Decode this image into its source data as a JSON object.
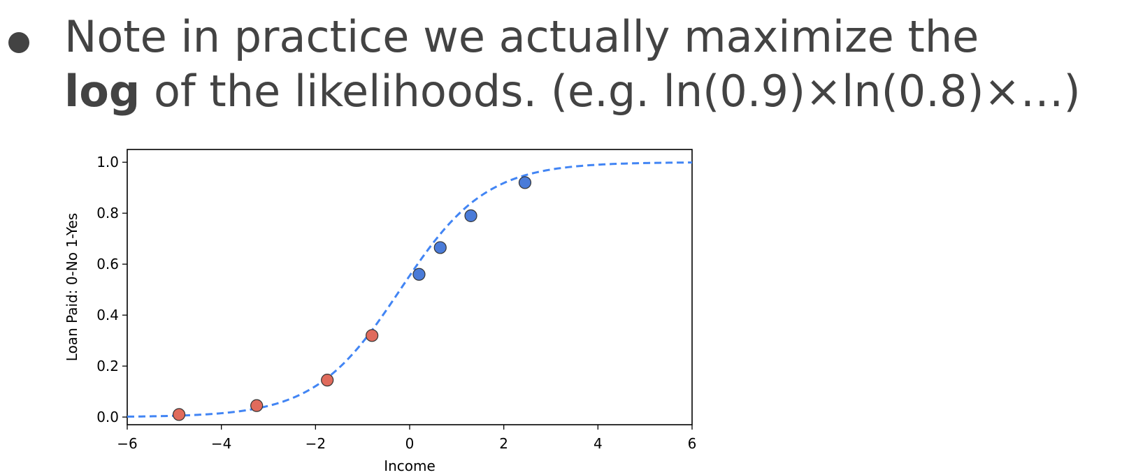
{
  "slide": {
    "bullet_line1": "Note in practice we actually maximize the",
    "bold_word": "log",
    "bullet_line2_rest": " of the likelihoods. (e.g. ln(0.9)×ln(0.8)×…)"
  },
  "chart_data": {
    "type": "scatter",
    "title": "",
    "xlabel": "Income",
    "ylabel": "Loan Paid: 0-No 1-Yes",
    "xlim": [
      -6,
      6
    ],
    "ylim": [
      -0.03,
      1.05
    ],
    "xticks": [
      -6,
      -4,
      -2,
      0,
      2,
      4,
      6
    ],
    "xtick_labels": [
      "−6",
      "−4",
      "−2",
      "0",
      "2",
      "4",
      "6"
    ],
    "yticks": [
      0.0,
      0.2,
      0.4,
      0.6,
      0.8,
      1.0
    ],
    "ytick_labels": [
      "0.0",
      "0.2",
      "0.4",
      "0.6",
      "0.8",
      "1.0"
    ],
    "grid": false,
    "curve": {
      "style": "dashed",
      "color": "#4285f4",
      "function": "logistic",
      "x_range": [
        -6,
        6
      ],
      "midpoint": -0.2,
      "steepness": 1.1
    },
    "series": [
      {
        "color": "#e06b5c",
        "points": [
          {
            "x": -4.9,
            "y": 0.01
          },
          {
            "x": -3.25,
            "y": 0.045
          },
          {
            "x": -1.75,
            "y": 0.145
          },
          {
            "x": -0.8,
            "y": 0.32
          }
        ]
      },
      {
        "color": "#4a7bd8",
        "points": [
          {
            "x": 0.2,
            "y": 0.56
          },
          {
            "x": 0.65,
            "y": 0.665
          },
          {
            "x": 1.3,
            "y": 0.79
          },
          {
            "x": 2.45,
            "y": 0.92
          }
        ]
      }
    ]
  }
}
